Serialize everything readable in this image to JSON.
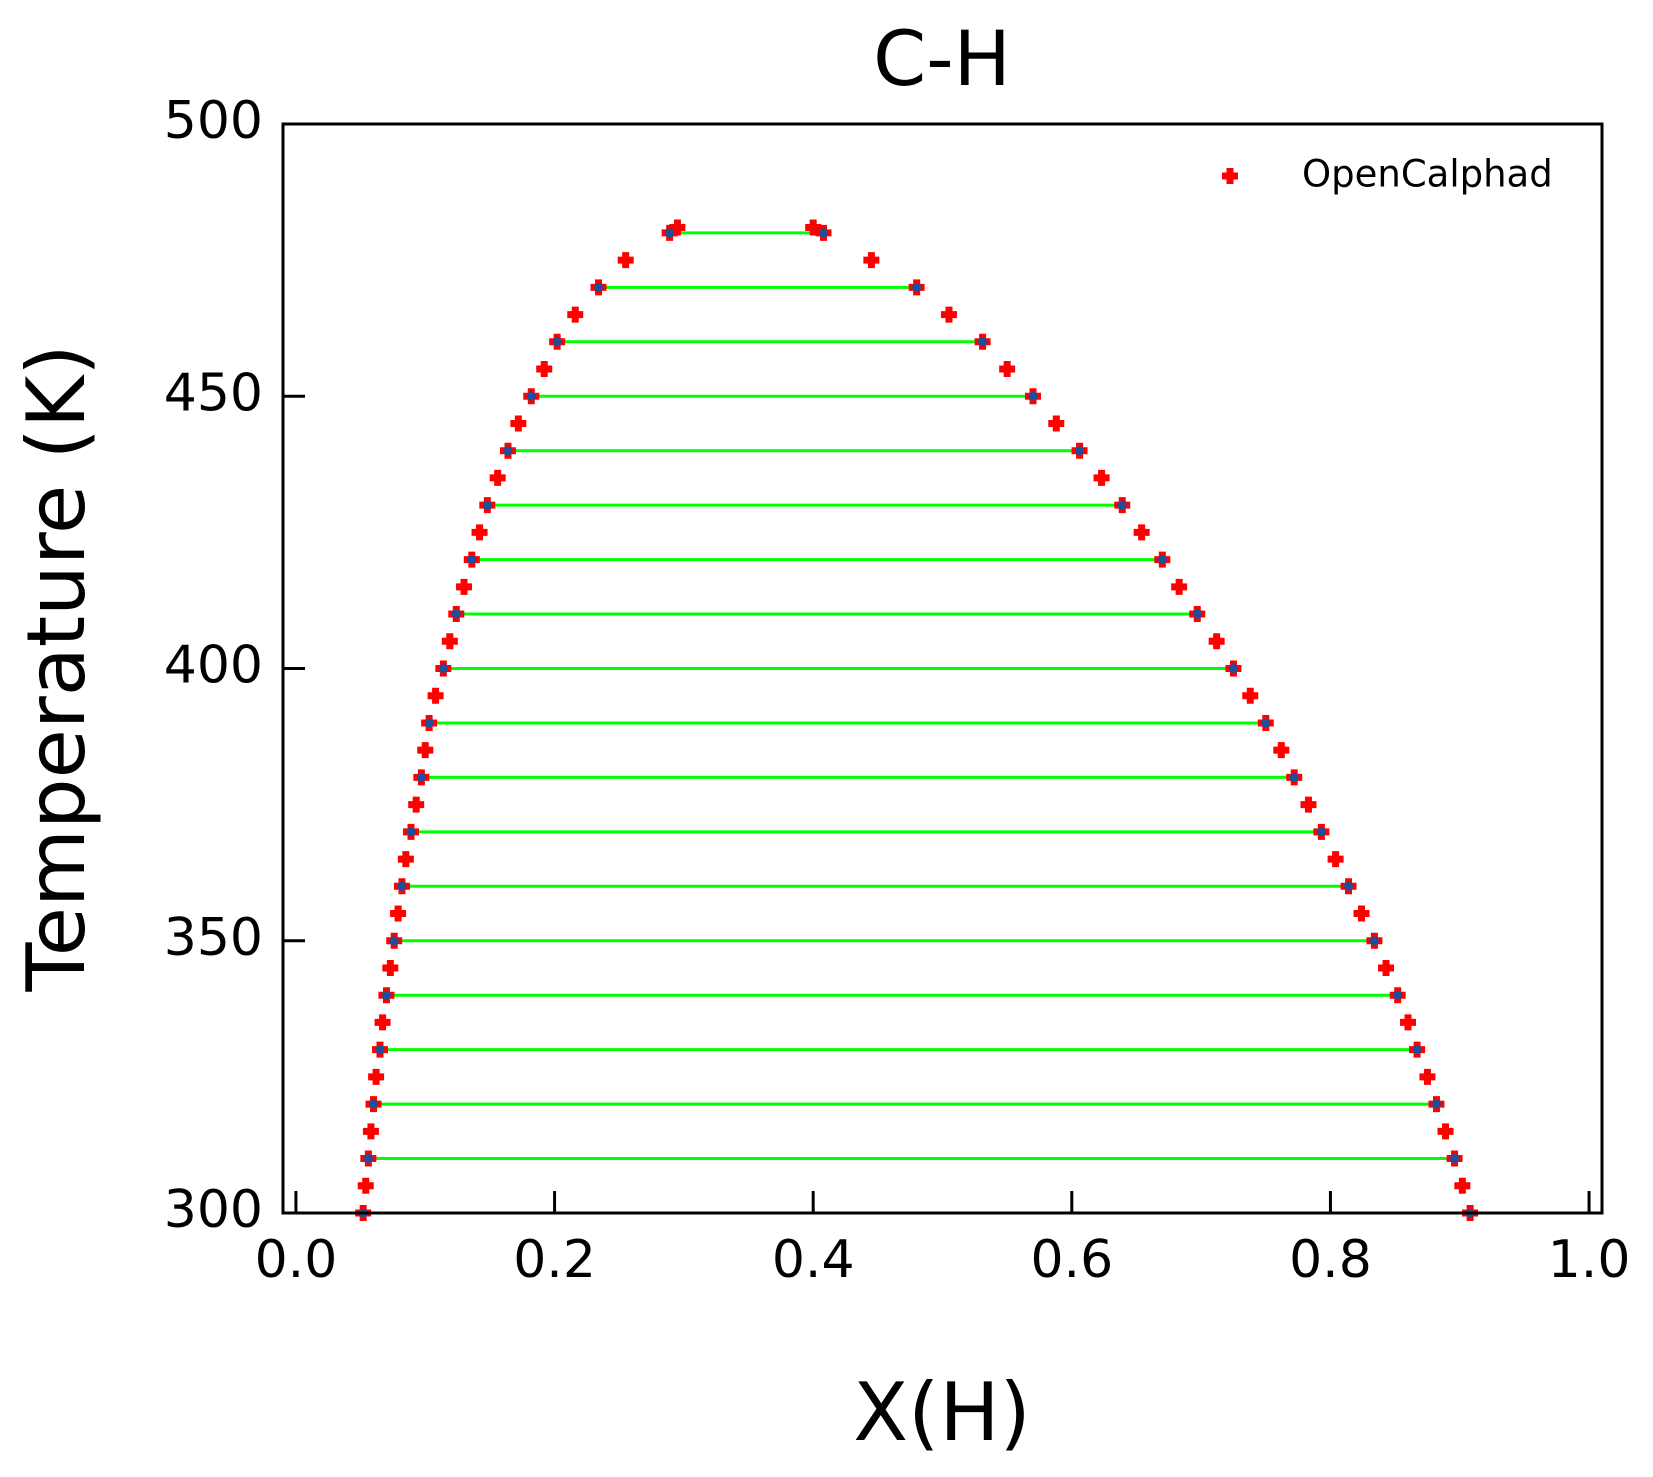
{
  "chart_data": {
    "type": "scatter",
    "title": "C-H",
    "x_label": "X(H)",
    "y_label": "Temperature (K)",
    "xlim": [
      -0.01,
      1.01
    ],
    "ylim": [
      300,
      500
    ],
    "xticks": [
      {
        "value": 0,
        "label": "0.0"
      },
      0.2,
      0.4,
      0.6,
      0.8,
      {
        "value": 1,
        "label": "1.0"
      }
    ],
    "yticks": [
      300,
      350,
      400,
      450,
      500
    ],
    "legend": "upper right",
    "series": [
      {
        "name": "OpenCalphad",
        "color": "#ff0000",
        "x": [
          0.052,
          0.054,
          0.056,
          0.058,
          0.06,
          0.062,
          0.065,
          0.067,
          0.07,
          0.073,
          0.076,
          0.079,
          0.082,
          0.085,
          0.089,
          0.093,
          0.097,
          0.1,
          0.103,
          0.108,
          0.114,
          0.119,
          0.124,
          0.13,
          0.136,
          0.142,
          0.148,
          0.156,
          0.164,
          0.172,
          0.182,
          0.192,
          0.202,
          0.216,
          0.234,
          0.255,
          0.289,
          0.295,
          0.4,
          0.408,
          0.445,
          0.48,
          0.505,
          0.531,
          0.55,
          0.57,
          0.588,
          0.606,
          0.623,
          0.639,
          0.654,
          0.67,
          0.683,
          0.697,
          0.712,
          0.725,
          0.738,
          0.75,
          0.762,
          0.772,
          0.783,
          0.793,
          0.804,
          0.814,
          0.824,
          0.834,
          0.843,
          0.852,
          0.86,
          0.867,
          0.875,
          0.882,
          0.889,
          0.896,
          0.902,
          0.908
        ],
        "values": [
          300,
          305,
          310,
          315,
          320,
          325,
          330,
          335,
          340,
          345,
          350,
          355,
          360,
          365,
          370,
          375,
          380,
          385,
          390,
          395,
          400,
          405,
          410,
          415,
          420,
          425,
          430,
          435,
          440,
          445,
          450,
          455,
          460,
          465,
          470,
          475,
          480,
          481,
          481,
          480,
          475,
          470,
          465,
          460,
          455,
          450,
          445,
          440,
          435,
          430,
          425,
          420,
          415,
          410,
          405,
          400,
          395,
          390,
          385,
          380,
          375,
          370,
          365,
          360,
          355,
          350,
          345,
          340,
          335,
          330,
          325,
          320,
          315,
          310,
          305,
          300
        ]
      }
    ],
    "tie_lines": {
      "color": "#00ff00",
      "end_color": "#1f4e9c",
      "temperatures": [
        300,
        310,
        320,
        330,
        340,
        350,
        360,
        370,
        380,
        390,
        400,
        410,
        420,
        430,
        440,
        450,
        460,
        470,
        480
      ],
      "x_left": [
        0.052,
        0.056,
        0.06,
        0.065,
        0.07,
        0.076,
        0.082,
        0.089,
        0.097,
        0.103,
        0.114,
        0.124,
        0.136,
        0.148,
        0.164,
        0.182,
        0.202,
        0.234,
        0.289
      ],
      "x_right": [
        0.908,
        0.896,
        0.882,
        0.867,
        0.852,
        0.834,
        0.814,
        0.793,
        0.772,
        0.75,
        0.725,
        0.697,
        0.67,
        0.639,
        0.606,
        0.57,
        0.531,
        0.48,
        0.408
      ]
    }
  }
}
